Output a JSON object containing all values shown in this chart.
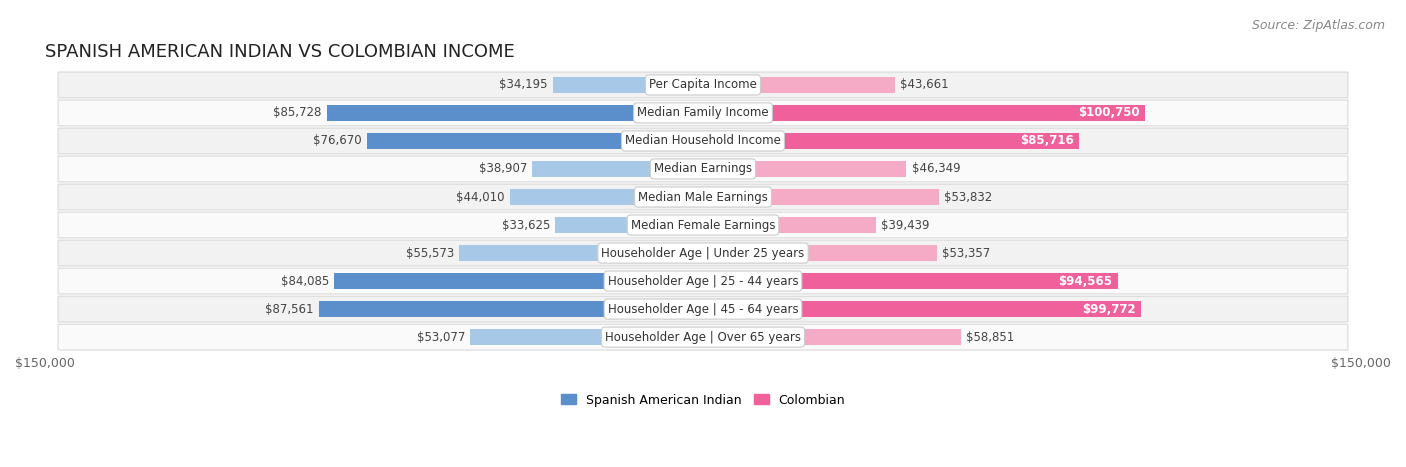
{
  "title": "SPANISH AMERICAN INDIAN VS COLOMBIAN INCOME",
  "source": "Source: ZipAtlas.com",
  "categories": [
    "Per Capita Income",
    "Median Family Income",
    "Median Household Income",
    "Median Earnings",
    "Median Male Earnings",
    "Median Female Earnings",
    "Householder Age | Under 25 years",
    "Householder Age | 25 - 44 years",
    "Householder Age | 45 - 64 years",
    "Householder Age | Over 65 years"
  ],
  "left_values": [
    34195,
    85728,
    76670,
    38907,
    44010,
    33625,
    55573,
    84085,
    87561,
    53077
  ],
  "right_values": [
    43661,
    100750,
    85716,
    46349,
    53832,
    39439,
    53357,
    94565,
    99772,
    58851
  ],
  "left_labels": [
    "$34,195",
    "$85,728",
    "$76,670",
    "$38,907",
    "$44,010",
    "$33,625",
    "$55,573",
    "$84,085",
    "$87,561",
    "$53,077"
  ],
  "right_labels": [
    "$43,661",
    "$100,750",
    "$85,716",
    "$46,349",
    "$53,832",
    "$39,439",
    "$53,357",
    "$94,565",
    "$99,772",
    "$58,851"
  ],
  "max_value": 150000,
  "left_color_light": "#a8c8e8",
  "left_color_dark": "#5b8fcc",
  "right_color_light": "#f5aac5",
  "right_color_dark": "#f0609a",
  "row_bg_even": "#f2f2f2",
  "row_bg_odd": "#fafafa",
  "row_border_color": "#d8d8d8",
  "legend_left_label": "Spanish American Indian",
  "legend_right_label": "Colombian",
  "x_tick_label": "$150,000",
  "title_fontsize": 13,
  "source_fontsize": 9,
  "bar_label_fontsize": 8.5,
  "category_fontsize": 8.5,
  "legend_fontsize": 9,
  "axis_label_fontsize": 9,
  "dark_threshold": 60000
}
